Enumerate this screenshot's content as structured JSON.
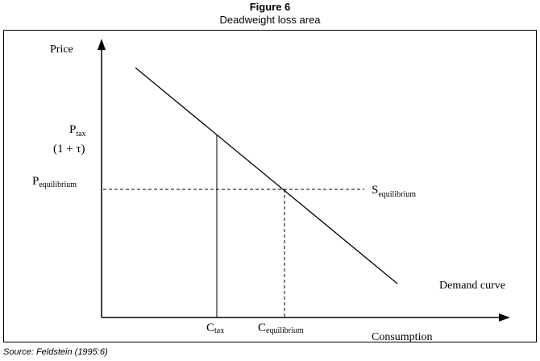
{
  "figure": {
    "title": "Figure 6",
    "subtitle": "Deadweight loss area",
    "source": "Source: Feldstein (1995:6)"
  },
  "diagram": {
    "y_axis_label": "Price",
    "x_axis_label": "Consumption",
    "p_tax_base": "P",
    "p_tax_sub": "tax",
    "p_tax_multiplier": "(1 + τ)",
    "p_eq_base": "P",
    "p_eq_sub": "equilibrium",
    "s_eq_base": "S",
    "s_eq_sub": "equilibrium",
    "demand_label": "Demand curve",
    "c_tax_base": "C",
    "c_tax_sub": "tax",
    "c_eq_base": "C",
    "c_eq_sub": "equilibrium"
  }
}
